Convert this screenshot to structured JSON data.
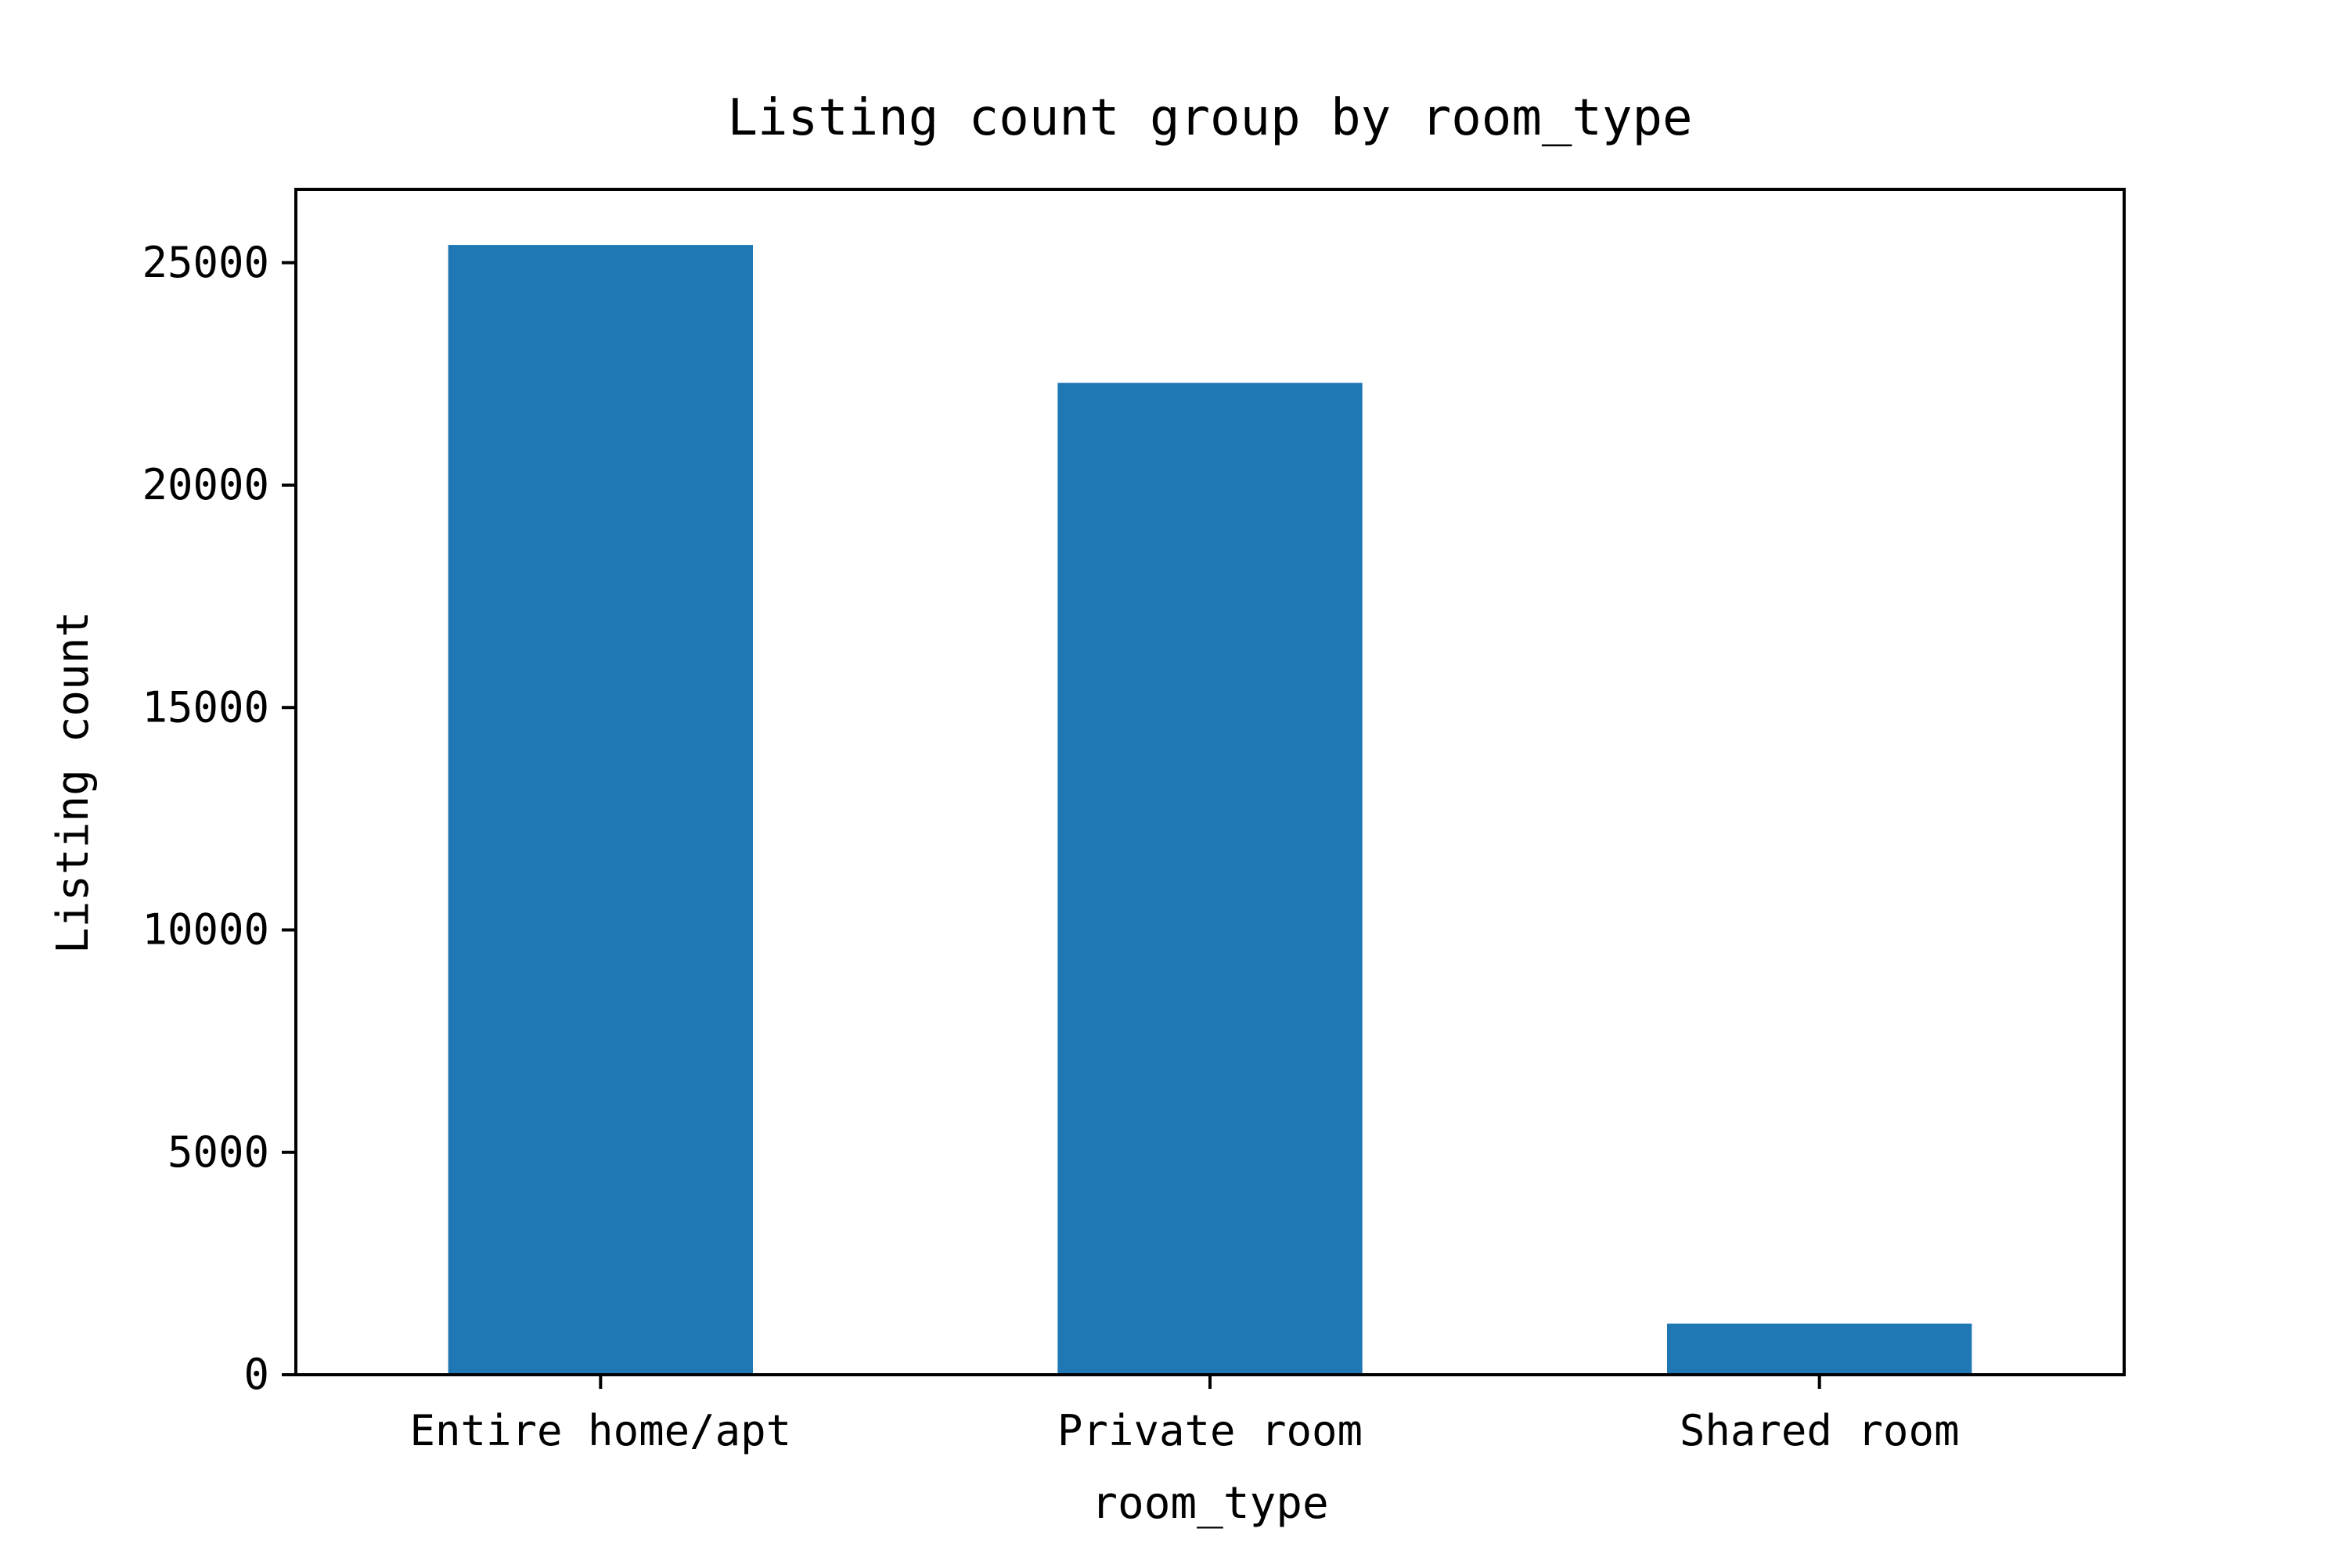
{
  "chart_data": {
    "type": "bar",
    "title": "Listing count group by room_type",
    "xlabel": "room_type",
    "ylabel": "Listing count",
    "categories": [
      "Entire home/apt",
      "Private room",
      "Shared room"
    ],
    "values": [
      25400,
      22300,
      1150
    ],
    "ylim": [
      0,
      26650
    ],
    "yticks": [
      0,
      5000,
      10000,
      15000,
      20000,
      25000
    ],
    "ytick_labels": [
      "0",
      "5000",
      "10000",
      "15000",
      "20000",
      "25000"
    ],
    "grid": false,
    "legend": "none",
    "bar_color": "#1f77b4"
  }
}
